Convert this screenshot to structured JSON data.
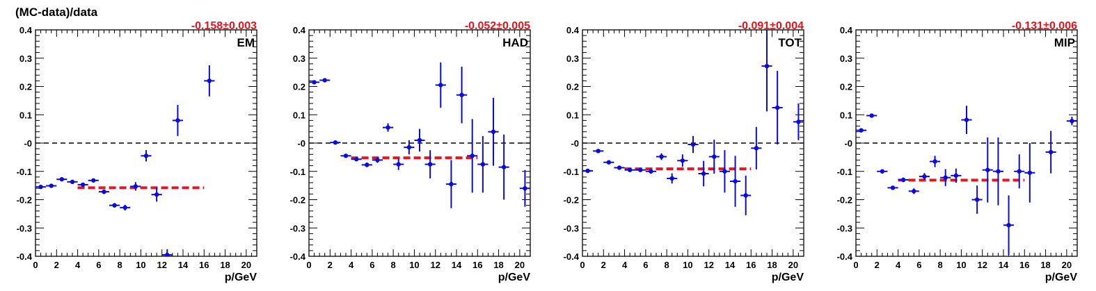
{
  "figure_title": "(MC-data)/data",
  "colors": {
    "points": "#0a0adc",
    "fit": "#e8141e",
    "axes": "#000000",
    "zero_line": "#000000"
  },
  "chart_data": [
    {
      "type": "scatter",
      "panel_label": "EM",
      "fit_label": "-0.158±0.003",
      "fit": {
        "value": -0.158,
        "error": 0.003,
        "x_range": [
          4,
          16
        ]
      },
      "xlabel": "p/GeV",
      "ylabel": "",
      "xlim": [
        0,
        21
      ],
      "ylim": [
        -0.4,
        0.4
      ],
      "xticks": [
        0,
        2,
        4,
        6,
        8,
        10,
        12,
        14,
        16,
        18,
        20
      ],
      "yticks": [
        -0.4,
        -0.3,
        -0.2,
        -0.1,
        0,
        0.1,
        0.2,
        0.3,
        0.4
      ],
      "ytick_labels": [
        "-0.4",
        "-0.3",
        "-0.2",
        "-0.1",
        "-0",
        "0.1",
        "0.2",
        "0.3",
        "0.4"
      ],
      "points": [
        {
          "x": 0.5,
          "y": -0.155,
          "err": 0.006
        },
        {
          "x": 1.5,
          "y": -0.151,
          "err": 0.005
        },
        {
          "x": 2.5,
          "y": -0.128,
          "err": 0.005
        },
        {
          "x": 3.5,
          "y": -0.137,
          "err": 0.005
        },
        {
          "x": 4.5,
          "y": -0.147,
          "err": 0.006
        },
        {
          "x": 5.5,
          "y": -0.132,
          "err": 0.006
        },
        {
          "x": 6.5,
          "y": -0.172,
          "err": 0.008
        },
        {
          "x": 7.5,
          "y": -0.22,
          "err": 0.008
        },
        {
          "x": 8.5,
          "y": -0.228,
          "err": 0.01
        },
        {
          "x": 9.5,
          "y": -0.153,
          "err": 0.015
        },
        {
          "x": 10.5,
          "y": -0.045,
          "err": 0.02
        },
        {
          "x": 11.5,
          "y": -0.182,
          "err": 0.025
        },
        {
          "x": 12.5,
          "y": -0.395,
          "err": 0.02
        },
        {
          "x": 13.5,
          "y": 0.08,
          "err": 0.055
        },
        {
          "x": 16.5,
          "y": 0.22,
          "err": 0.055
        }
      ]
    },
    {
      "type": "scatter",
      "panel_label": "HAD",
      "fit_label": "-0.052±0.005",
      "fit": {
        "value": -0.052,
        "error": 0.005,
        "x_range": [
          4,
          16
        ]
      },
      "xlabel": "p/GeV",
      "ylabel": "",
      "xlim": [
        0,
        21
      ],
      "ylim": [
        -0.4,
        0.4
      ],
      "xticks": [
        0,
        2,
        4,
        6,
        8,
        10,
        12,
        14,
        16,
        18,
        20
      ],
      "yticks": [
        -0.4,
        -0.3,
        -0.2,
        -0.1,
        0,
        0.1,
        0.2,
        0.3,
        0.4
      ],
      "ytick_labels": [
        "-0.4",
        "-0.3",
        "-0.2",
        "-0.1",
        "-0",
        "0.1",
        "0.2",
        "0.3",
        "0.4"
      ],
      "points": [
        {
          "x": 0.5,
          "y": 0.215,
          "err": 0.005
        },
        {
          "x": 1.5,
          "y": 0.222,
          "err": 0.005
        },
        {
          "x": 2.5,
          "y": 0.002,
          "err": 0.004
        },
        {
          "x": 3.5,
          "y": -0.045,
          "err": 0.005
        },
        {
          "x": 4.5,
          "y": -0.057,
          "err": 0.006
        },
        {
          "x": 5.5,
          "y": -0.077,
          "err": 0.008
        },
        {
          "x": 6.5,
          "y": -0.06,
          "err": 0.01
        },
        {
          "x": 7.5,
          "y": 0.055,
          "err": 0.015
        },
        {
          "x": 8.5,
          "y": -0.075,
          "err": 0.02
        },
        {
          "x": 9.5,
          "y": -0.015,
          "err": 0.025
        },
        {
          "x": 10.5,
          "y": 0.01,
          "err": 0.04
        },
        {
          "x": 11.5,
          "y": -0.075,
          "err": 0.05
        },
        {
          "x": 12.5,
          "y": 0.205,
          "err": 0.08
        },
        {
          "x": 13.5,
          "y": -0.145,
          "err": 0.085
        },
        {
          "x": 14.5,
          "y": 0.17,
          "err": 0.1
        },
        {
          "x": 15.5,
          "y": -0.045,
          "err": 0.13
        },
        {
          "x": 16.5,
          "y": -0.075,
          "err": 0.1
        },
        {
          "x": 17.5,
          "y": 0.04,
          "err": 0.12
        },
        {
          "x": 18.5,
          "y": -0.085,
          "err": 0.115
        },
        {
          "x": 20.5,
          "y": -0.16,
          "err": 0.065
        }
      ]
    },
    {
      "type": "scatter",
      "panel_label": "TOT",
      "fit_label": "-0.091±0.004",
      "fit": {
        "value": -0.091,
        "error": 0.004,
        "x_range": [
          4,
          16
        ]
      },
      "xlabel": "p/GeV",
      "ylabel": "",
      "xlim": [
        0,
        21
      ],
      "ylim": [
        -0.4,
        0.4
      ],
      "xticks": [
        0,
        2,
        4,
        6,
        8,
        10,
        12,
        14,
        16,
        18,
        20
      ],
      "yticks": [
        -0.4,
        -0.3,
        -0.2,
        -0.1,
        0,
        0.1,
        0.2,
        0.3,
        0.4
      ],
      "ytick_labels": [
        "-0.4",
        "-0.3",
        "-0.2",
        "-0.1",
        "-0",
        "0.1",
        "0.2",
        "0.3",
        "0.4"
      ],
      "points": [
        {
          "x": 0.5,
          "y": -0.098,
          "err": 0.005
        },
        {
          "x": 1.5,
          "y": -0.028,
          "err": 0.005
        },
        {
          "x": 2.5,
          "y": -0.068,
          "err": 0.004
        },
        {
          "x": 3.5,
          "y": -0.087,
          "err": 0.005
        },
        {
          "x": 4.5,
          "y": -0.095,
          "err": 0.006
        },
        {
          "x": 5.5,
          "y": -0.095,
          "err": 0.007
        },
        {
          "x": 6.5,
          "y": -0.1,
          "err": 0.008
        },
        {
          "x": 7.5,
          "y": -0.048,
          "err": 0.012
        },
        {
          "x": 8.5,
          "y": -0.125,
          "err": 0.018
        },
        {
          "x": 9.5,
          "y": -0.062,
          "err": 0.022
        },
        {
          "x": 10.5,
          "y": -0.005,
          "err": 0.03
        },
        {
          "x": 11.5,
          "y": -0.108,
          "err": 0.045
        },
        {
          "x": 12.5,
          "y": -0.048,
          "err": 0.06
        },
        {
          "x": 13.5,
          "y": -0.1,
          "err": 0.075
        },
        {
          "x": 14.5,
          "y": -0.135,
          "err": 0.09
        },
        {
          "x": 15.5,
          "y": -0.185,
          "err": 0.07
        },
        {
          "x": 16.5,
          "y": -0.018,
          "err": 0.075
        },
        {
          "x": 17.5,
          "y": 0.272,
          "err": 0.16
        },
        {
          "x": 18.5,
          "y": 0.125,
          "err": 0.13
        },
        {
          "x": 20.5,
          "y": 0.075,
          "err": 0.065
        }
      ]
    },
    {
      "type": "scatter",
      "panel_label": "MIP",
      "fit_label": "-0.131±0.006",
      "fit": {
        "value": -0.131,
        "error": 0.006,
        "x_range": [
          4,
          16
        ]
      },
      "xlabel": "p/GeV",
      "ylabel": "",
      "xlim": [
        0,
        21
      ],
      "ylim": [
        -0.4,
        0.4
      ],
      "xticks": [
        0,
        2,
        4,
        6,
        8,
        10,
        12,
        14,
        16,
        18,
        20
      ],
      "yticks": [
        -0.4,
        -0.3,
        -0.2,
        -0.1,
        0,
        0.1,
        0.2,
        0.3,
        0.4
      ],
      "ytick_labels": [
        "-0.4",
        "-0.3",
        "-0.2",
        "-0.1",
        "-0",
        "0.1",
        "0.2",
        "0.3",
        "0.4"
      ],
      "points": [
        {
          "x": 0.5,
          "y": 0.045,
          "err": 0.006
        },
        {
          "x": 1.5,
          "y": 0.097,
          "err": 0.005
        },
        {
          "x": 2.5,
          "y": -0.1,
          "err": 0.005
        },
        {
          "x": 3.5,
          "y": -0.158,
          "err": 0.006
        },
        {
          "x": 4.5,
          "y": -0.13,
          "err": 0.008
        },
        {
          "x": 5.5,
          "y": -0.17,
          "err": 0.01
        },
        {
          "x": 6.5,
          "y": -0.118,
          "err": 0.012
        },
        {
          "x": 7.5,
          "y": -0.065,
          "err": 0.02
        },
        {
          "x": 8.5,
          "y": -0.122,
          "err": 0.03
        },
        {
          "x": 9.5,
          "y": -0.115,
          "err": 0.025
        },
        {
          "x": 10.5,
          "y": 0.082,
          "err": 0.05
        },
        {
          "x": 11.5,
          "y": -0.2,
          "err": 0.05
        },
        {
          "x": 12.5,
          "y": -0.095,
          "err": 0.115
        },
        {
          "x": 13.5,
          "y": -0.1,
          "err": 0.12
        },
        {
          "x": 14.5,
          "y": -0.29,
          "err": 0.105
        },
        {
          "x": 15.5,
          "y": -0.1,
          "err": 0.06
        },
        {
          "x": 16.5,
          "y": -0.105,
          "err": 0.105
        },
        {
          "x": 18.5,
          "y": -0.032,
          "err": 0.075
        },
        {
          "x": 20.5,
          "y": 0.078,
          "err": 0.015
        }
      ]
    }
  ]
}
